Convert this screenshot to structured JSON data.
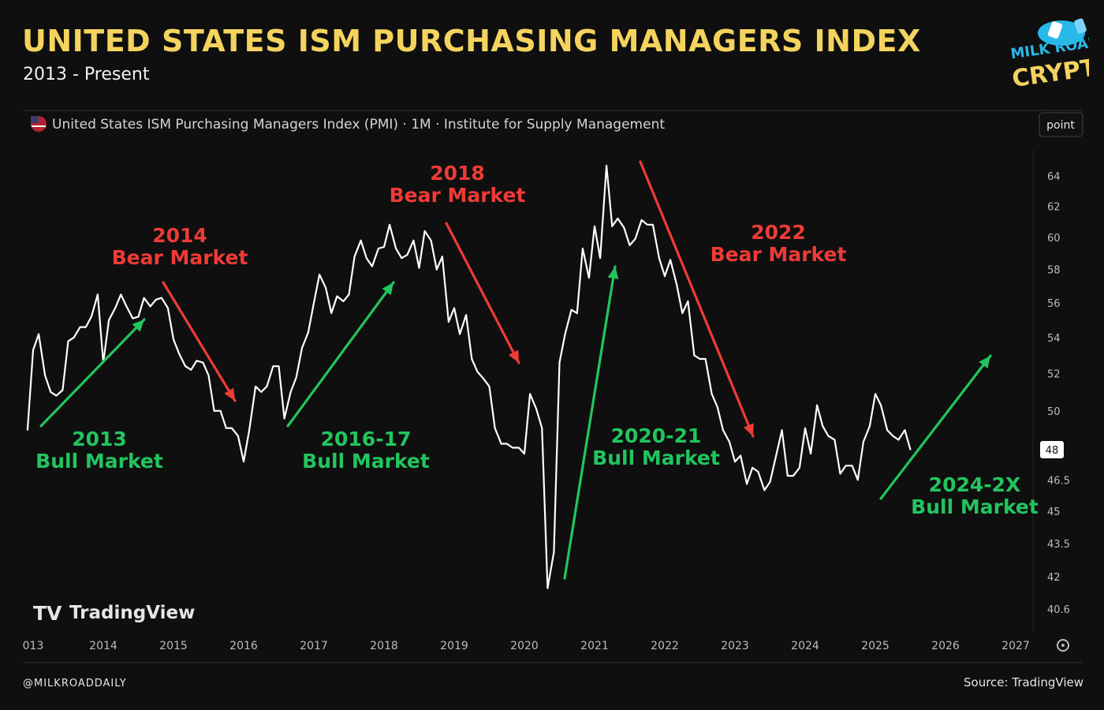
{
  "header": {
    "title": "UNITED STATES ISM PURCHASING MANAGERS INDEX",
    "subtitle": "2013 - Present"
  },
  "logo": {
    "line1": "MILK ROAD",
    "line2": "CRYPTO"
  },
  "footer": {
    "handle": "@MILKROADDAILY",
    "source": "Source: TradingView"
  },
  "colors": {
    "title": "#f4d35e",
    "bear": "#ef3b36",
    "bull": "#22c55e",
    "line": "#ffffff",
    "background": "#0f0f0f"
  },
  "chart_data": {
    "type": "line",
    "legend": "United States ISM Purchasing Managers Index (PMI) · 1M · Institute for Supply Management",
    "flag_icon": "us-flag-icon",
    "scale_button": "point",
    "watermark": "TradingView",
    "settings_icon": "gear-icon",
    "current_value_label": "48",
    "x_ticks": [
      "013",
      "2014",
      "2015",
      "2016",
      "2017",
      "2018",
      "2019",
      "2020",
      "2021",
      "2022",
      "2023",
      "2024",
      "2025",
      "2026",
      "2027"
    ],
    "y_ticks": [
      "64",
      "62",
      "60",
      "58",
      "56",
      "54",
      "52",
      "50",
      "48",
      "46.5",
      "45",
      "43.5",
      "42",
      "40.6"
    ],
    "xlim": [
      2012.9,
      2027.2
    ],
    "ylim": [
      40.0,
      65.5
    ],
    "y_scale": "log",
    "series": [
      {
        "x": [
          2012.92,
          2013.0,
          2013.08,
          2013.17,
          2013.25,
          2013.33,
          2013.42,
          2013.5,
          2013.58,
          2013.67,
          2013.75,
          2013.83,
          2013.92,
          2014.0,
          2014.08,
          2014.17,
          2014.25,
          2014.33,
          2014.42,
          2014.5,
          2014.58,
          2014.67,
          2014.75,
          2014.83,
          2014.92,
          2015.0,
          2015.08,
          2015.17,
          2015.25,
          2015.33,
          2015.42,
          2015.5,
          2015.58,
          2015.67,
          2015.75,
          2015.83,
          2015.92,
          2016.0,
          2016.08,
          2016.17,
          2016.25,
          2016.33,
          2016.42,
          2016.5,
          2016.58,
          2016.67,
          2016.75,
          2016.83,
          2016.92,
          2017.0,
          2017.08,
          2017.17,
          2017.25,
          2017.33,
          2017.42,
          2017.5,
          2017.58,
          2017.67,
          2017.75,
          2017.83,
          2017.92,
          2018.0,
          2018.08,
          2018.17,
          2018.25,
          2018.33,
          2018.42,
          2018.5,
          2018.58,
          2018.67,
          2018.75,
          2018.83,
          2018.92,
          2019.0,
          2019.08,
          2019.17,
          2019.25,
          2019.33,
          2019.42,
          2019.5,
          2019.58,
          2019.67,
          2019.75,
          2019.83,
          2019.92,
          2020.0,
          2020.08,
          2020.17,
          2020.25,
          2020.33,
          2020.42,
          2020.5,
          2020.58,
          2020.67,
          2020.75,
          2020.83,
          2020.92,
          2021.0,
          2021.08,
          2021.17,
          2021.25,
          2021.33,
          2021.42,
          2021.5,
          2021.58,
          2021.67,
          2021.75,
          2021.83,
          2021.92,
          2022.0,
          2022.08,
          2022.17,
          2022.25,
          2022.33,
          2022.42,
          2022.5,
          2022.58,
          2022.67,
          2022.75,
          2022.83,
          2022.92,
          2023.0,
          2023.08,
          2023.17,
          2023.25,
          2023.33,
          2023.42,
          2023.5,
          2023.58,
          2023.67,
          2023.75,
          2023.83,
          2023.92,
          2024.0,
          2024.08,
          2024.17,
          2024.25,
          2024.33,
          2024.42,
          2024.5,
          2024.58,
          2024.67,
          2024.75,
          2024.83,
          2024.92,
          2025.0,
          2025.08,
          2025.17,
          2025.25,
          2025.33,
          2025.42,
          2025.5
        ],
        "y": [
          49.0,
          53.3,
          54.2,
          51.9,
          51.0,
          50.8,
          51.1,
          53.8,
          54.0,
          54.6,
          54.6,
          55.2,
          56.5,
          52.6,
          55.0,
          55.7,
          56.5,
          55.8,
          55.1,
          55.2,
          56.3,
          55.8,
          56.2,
          56.3,
          55.7,
          53.9,
          53.1,
          52.4,
          52.2,
          52.7,
          52.6,
          51.9,
          50.0,
          50.0,
          49.1,
          49.1,
          48.7,
          47.4,
          49.0,
          51.3,
          51.0,
          51.3,
          52.4,
          52.4,
          49.6,
          51.0,
          51.8,
          53.4,
          54.3,
          56.0,
          57.7,
          56.9,
          55.4,
          56.4,
          56.1,
          56.5,
          58.8,
          59.8,
          58.7,
          58.2,
          59.3,
          59.4,
          60.8,
          59.3,
          58.7,
          58.9,
          59.8,
          58.1,
          60.4,
          59.8,
          58.0,
          58.8,
          54.9,
          55.7,
          54.2,
          55.3,
          52.8,
          52.1,
          51.7,
          51.3,
          49.1,
          48.3,
          48.3,
          48.1,
          48.1,
          47.8,
          50.9,
          50.1,
          49.1,
          41.5,
          43.1,
          52.6,
          54.2,
          55.6,
          55.4,
          59.3,
          57.5,
          60.7,
          58.7,
          64.7,
          60.7,
          61.2,
          60.6,
          59.5,
          59.9,
          61.1,
          60.8,
          60.8,
          58.7,
          57.6,
          58.6,
          57.1,
          55.4,
          56.1,
          53.0,
          52.8,
          52.8,
          50.9,
          50.2,
          49.0,
          48.4,
          47.4,
          47.7,
          46.3,
          47.1,
          46.9,
          46.0,
          46.4,
          47.6,
          49.0,
          46.7,
          46.7,
          47.1,
          49.1,
          47.8,
          50.3,
          49.2,
          48.7,
          48.5,
          46.8,
          47.2,
          47.2,
          46.5,
          48.4,
          49.2,
          50.9,
          50.3,
          49.0,
          48.7,
          48.5,
          49.0,
          48.0
        ]
      }
    ],
    "annotations": [
      {
        "kind": "bull",
        "line1": "2013",
        "line2": "Bull Market"
      },
      {
        "kind": "bear",
        "line1": "2014",
        "line2": "Bear Market"
      },
      {
        "kind": "bull",
        "line1": "2016-17",
        "line2": "Bull Market"
      },
      {
        "kind": "bear",
        "line1": "2018",
        "line2": "Bear Market"
      },
      {
        "kind": "bull",
        "line1": "2020-21",
        "line2": "Bull Market"
      },
      {
        "kind": "bear",
        "line1": "2022",
        "line2": "Bear Market"
      },
      {
        "kind": "bull",
        "line1": "2024-2X",
        "line2": "Bull Market"
      }
    ]
  }
}
